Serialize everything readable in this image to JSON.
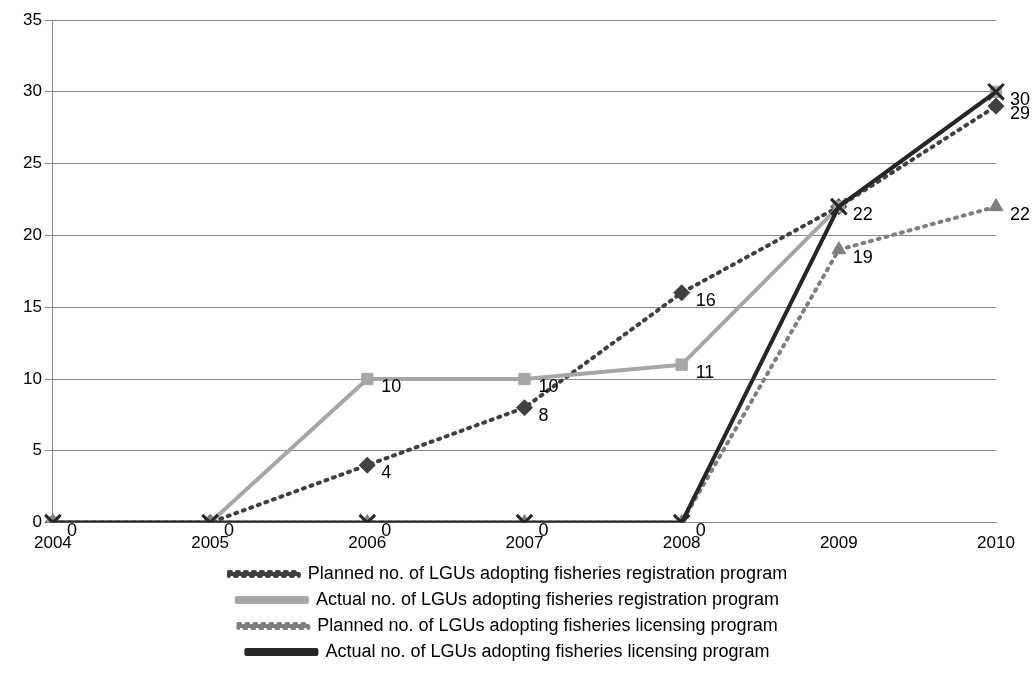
{
  "chart_data": {
    "type": "line",
    "categories": [
      "2004",
      "2005",
      "2006",
      "2007",
      "2008",
      "2009",
      "2010"
    ],
    "series": [
      {
        "name": "Planned no. of LGUs adopting fisheries registration program",
        "color": "#404040",
        "marker": "diamond",
        "line_style": "dotted",
        "values": [
          0,
          0,
          4,
          8,
          16,
          22,
          29
        ],
        "value_labels": [
          "0",
          "0",
          "4",
          "8",
          "16",
          "22",
          "29"
        ]
      },
      {
        "name": "Actual no. of LGUs adopting fisheries registration program",
        "color": "#a6a6a6",
        "marker": "square",
        "line_style": "solid",
        "values": [
          0,
          0,
          10,
          10,
          11,
          22,
          30
        ],
        "value_labels": [
          null,
          null,
          "10",
          "10",
          "11",
          null,
          "30"
        ]
      },
      {
        "name": "Planned no. of LGUs adopting fisheries licensing program",
        "color": "#7f7f7f",
        "marker": "triangle",
        "line_style": "dotted",
        "values": [
          0,
          0,
          0,
          0,
          0,
          19,
          22
        ],
        "value_labels": [
          null,
          null,
          "0",
          "0",
          "0",
          "19",
          "22"
        ]
      },
      {
        "name": "Actual no. of LGUs adopting fisheries licensing program",
        "color": "#262626",
        "marker": "cross",
        "line_style": "solid",
        "values": [
          0,
          0,
          0,
          0,
          0,
          22,
          30
        ]
      }
    ],
    "ylim": [
      0,
      35
    ],
    "yticks": [
      0,
      5,
      10,
      15,
      20,
      25,
      30,
      35
    ],
    "grid": "y",
    "legend": "bottom"
  }
}
